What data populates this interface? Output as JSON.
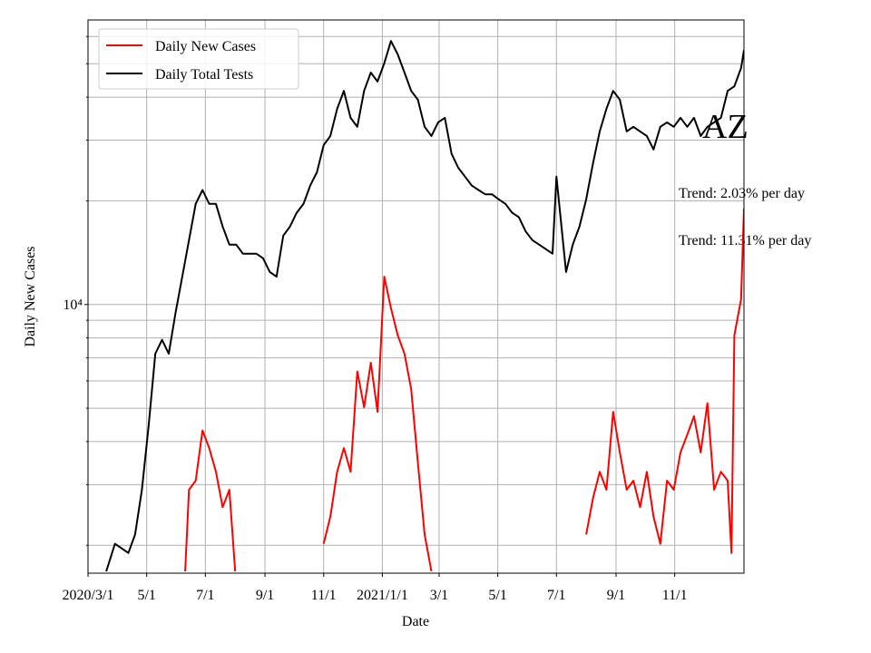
{
  "chart_data": {
    "type": "line",
    "xlabel": "Date",
    "ylabel": "Daily New Cases",
    "log_y": true,
    "grid": true,
    "legend": "upper left",
    "xlim": [
      "2020-03-01",
      "2022-01-12"
    ],
    "xticks": [
      {
        "value": "2020-03-01",
        "label": "2020/3/1"
      },
      {
        "value": "2020-05-01",
        "label": "5/1"
      },
      {
        "value": "2020-07-01",
        "label": "7/1"
      },
      {
        "value": "2020-09-01",
        "label": "9/1"
      },
      {
        "value": "2020-11-01",
        "label": "11/1"
      },
      {
        "value": "2021-01-01",
        "label": "2021/1/1"
      },
      {
        "value": "2021-03-01",
        "label": "3/1"
      },
      {
        "value": "2021-05-01",
        "label": "5/1"
      },
      {
        "value": "2021-07-01",
        "label": "7/1"
      },
      {
        "value": "2021-09-01",
        "label": "9/1"
      },
      {
        "value": "2021-11-01",
        "label": "11/1"
      }
    ],
    "ylim": [
      1660,
      67000
    ],
    "yticks": [
      {
        "value": 10000,
        "label": "10⁴"
      }
    ],
    "yminorticks": [
      2000,
      3000,
      4000,
      5000,
      6000,
      7000,
      8000,
      9000,
      20000,
      30000,
      40000,
      50000,
      60000
    ],
    "annotations": [
      "AZ",
      "Trend: 2.03% per day",
      "Trend: 11.31% per day"
    ],
    "series": [
      {
        "name": "Daily New Cases",
        "color": "#ff0000",
        "x": [
          "2020-06-10",
          "2020-06-14",
          "2020-06-21",
          "2020-06-28",
          "2020-07-05",
          "2020-07-12",
          "2020-07-19",
          "2020-07-26",
          "2020-08-01",
          "2020-09-15",
          "2020-11-01",
          "2020-11-08",
          "2020-11-15",
          "2020-11-22",
          "2020-11-29",
          "2020-12-06",
          "2020-12-13",
          "2020-12-20",
          "2020-12-27",
          "2021-01-03",
          "2021-01-10",
          "2021-01-17",
          "2021-01-24",
          "2021-01-31",
          "2021-02-07",
          "2021-02-14",
          "2021-02-21",
          "2021-05-01",
          "2021-08-01",
          "2021-08-08",
          "2021-08-15",
          "2021-08-22",
          "2021-08-29",
          "2021-09-05",
          "2021-09-12",
          "2021-09-19",
          "2021-09-26",
          "2021-10-03",
          "2021-10-10",
          "2021-10-17",
          "2021-10-24",
          "2021-10-31",
          "2021-11-07",
          "2021-11-14",
          "2021-11-21",
          "2021-11-28",
          "2021-12-05",
          "2021-12-12",
          "2021-12-19",
          "2021-12-26",
          "2021-12-30",
          "2022-01-02",
          "2022-01-09",
          "2022-01-12"
        ],
        "values": [
          1680,
          2900,
          3080,
          4310,
          3830,
          3270,
          2580,
          2900,
          1680,
          null,
          2020,
          2420,
          3270,
          3830,
          3270,
          6390,
          5030,
          6780,
          4880,
          12050,
          9760,
          8140,
          7200,
          5680,
          3470,
          2150,
          1680,
          null,
          2150,
          2740,
          3270,
          2900,
          4880,
          3720,
          2900,
          3080,
          2580,
          3270,
          2420,
          2020,
          3080,
          2900,
          3720,
          4190,
          4740,
          3720,
          5170,
          2900,
          3270,
          3080,
          1900,
          8140,
          10360,
          19000
        ]
      },
      {
        "name": "Daily Total Tests",
        "color": "#000000",
        "x": [
          "2020-03-20",
          "2020-03-29",
          "2020-04-12",
          "2020-04-19",
          "2020-04-26",
          "2020-05-03",
          "2020-05-10",
          "2020-05-17",
          "2020-05-24",
          "2020-05-31",
          "2020-06-07",
          "2020-06-14",
          "2020-06-21",
          "2020-06-28",
          "2020-07-05",
          "2020-07-12",
          "2020-07-19",
          "2020-07-26",
          "2020-08-02",
          "2020-08-09",
          "2020-08-16",
          "2020-08-23",
          "2020-08-30",
          "2020-09-06",
          "2020-09-13",
          "2020-09-20",
          "2020-09-27",
          "2020-10-04",
          "2020-10-11",
          "2020-10-18",
          "2020-10-25",
          "2020-11-01",
          "2020-11-08",
          "2020-11-15",
          "2020-11-22",
          "2020-11-29",
          "2020-12-06",
          "2020-12-13",
          "2020-12-20",
          "2020-12-27",
          "2021-01-03",
          "2021-01-10",
          "2021-01-17",
          "2021-01-24",
          "2021-01-31",
          "2021-02-07",
          "2021-02-14",
          "2021-02-21",
          "2021-02-28",
          "2021-03-07",
          "2021-03-14",
          "2021-03-21",
          "2021-03-28",
          "2021-04-04",
          "2021-04-11",
          "2021-04-18",
          "2021-04-25",
          "2021-05-02",
          "2021-05-09",
          "2021-05-16",
          "2021-05-23",
          "2021-05-30",
          "2021-06-06",
          "2021-06-13",
          "2021-06-20",
          "2021-06-27",
          "2021-07-01",
          "2021-07-11",
          "2021-07-18",
          "2021-07-25",
          "2021-08-01",
          "2021-08-08",
          "2021-08-15",
          "2021-08-22",
          "2021-08-29",
          "2021-09-05",
          "2021-09-12",
          "2021-09-19",
          "2021-09-26",
          "2021-10-03",
          "2021-10-10",
          "2021-10-17",
          "2021-10-24",
          "2021-10-31",
          "2021-11-07",
          "2021-11-14",
          "2021-11-21",
          "2021-11-28",
          "2021-12-05",
          "2021-12-12",
          "2021-12-19",
          "2021-12-26",
          "2022-01-02",
          "2022-01-09",
          "2022-01-12"
        ],
        "values": [
          1680,
          2020,
          1900,
          2150,
          2900,
          4440,
          7200,
          7900,
          7200,
          9470,
          12050,
          15380,
          19600,
          21500,
          19600,
          19600,
          16840,
          14930,
          14930,
          14050,
          14050,
          14050,
          13630,
          12430,
          12050,
          15840,
          16840,
          18460,
          19600,
          22150,
          24200,
          29000,
          30850,
          36990,
          41700,
          34840,
          32800,
          41700,
          47140,
          44400,
          50100,
          58200,
          53200,
          47140,
          41700,
          39300,
          32800,
          30850,
          33800,
          34840,
          27400,
          24940,
          23500,
          22150,
          21500,
          20900,
          20900,
          20200,
          19600,
          18460,
          17920,
          16300,
          15380,
          14930,
          14480,
          14050,
          23500,
          12430,
          14930,
          16840,
          20200,
          25700,
          31800,
          36990,
          41700,
          39300,
          31800,
          32800,
          31800,
          30850,
          28200,
          32800,
          33800,
          32800,
          34840,
          32800,
          34840,
          30850,
          32800,
          33800,
          34840,
          41700,
          43000,
          48600,
          54800
        ]
      }
    ]
  }
}
